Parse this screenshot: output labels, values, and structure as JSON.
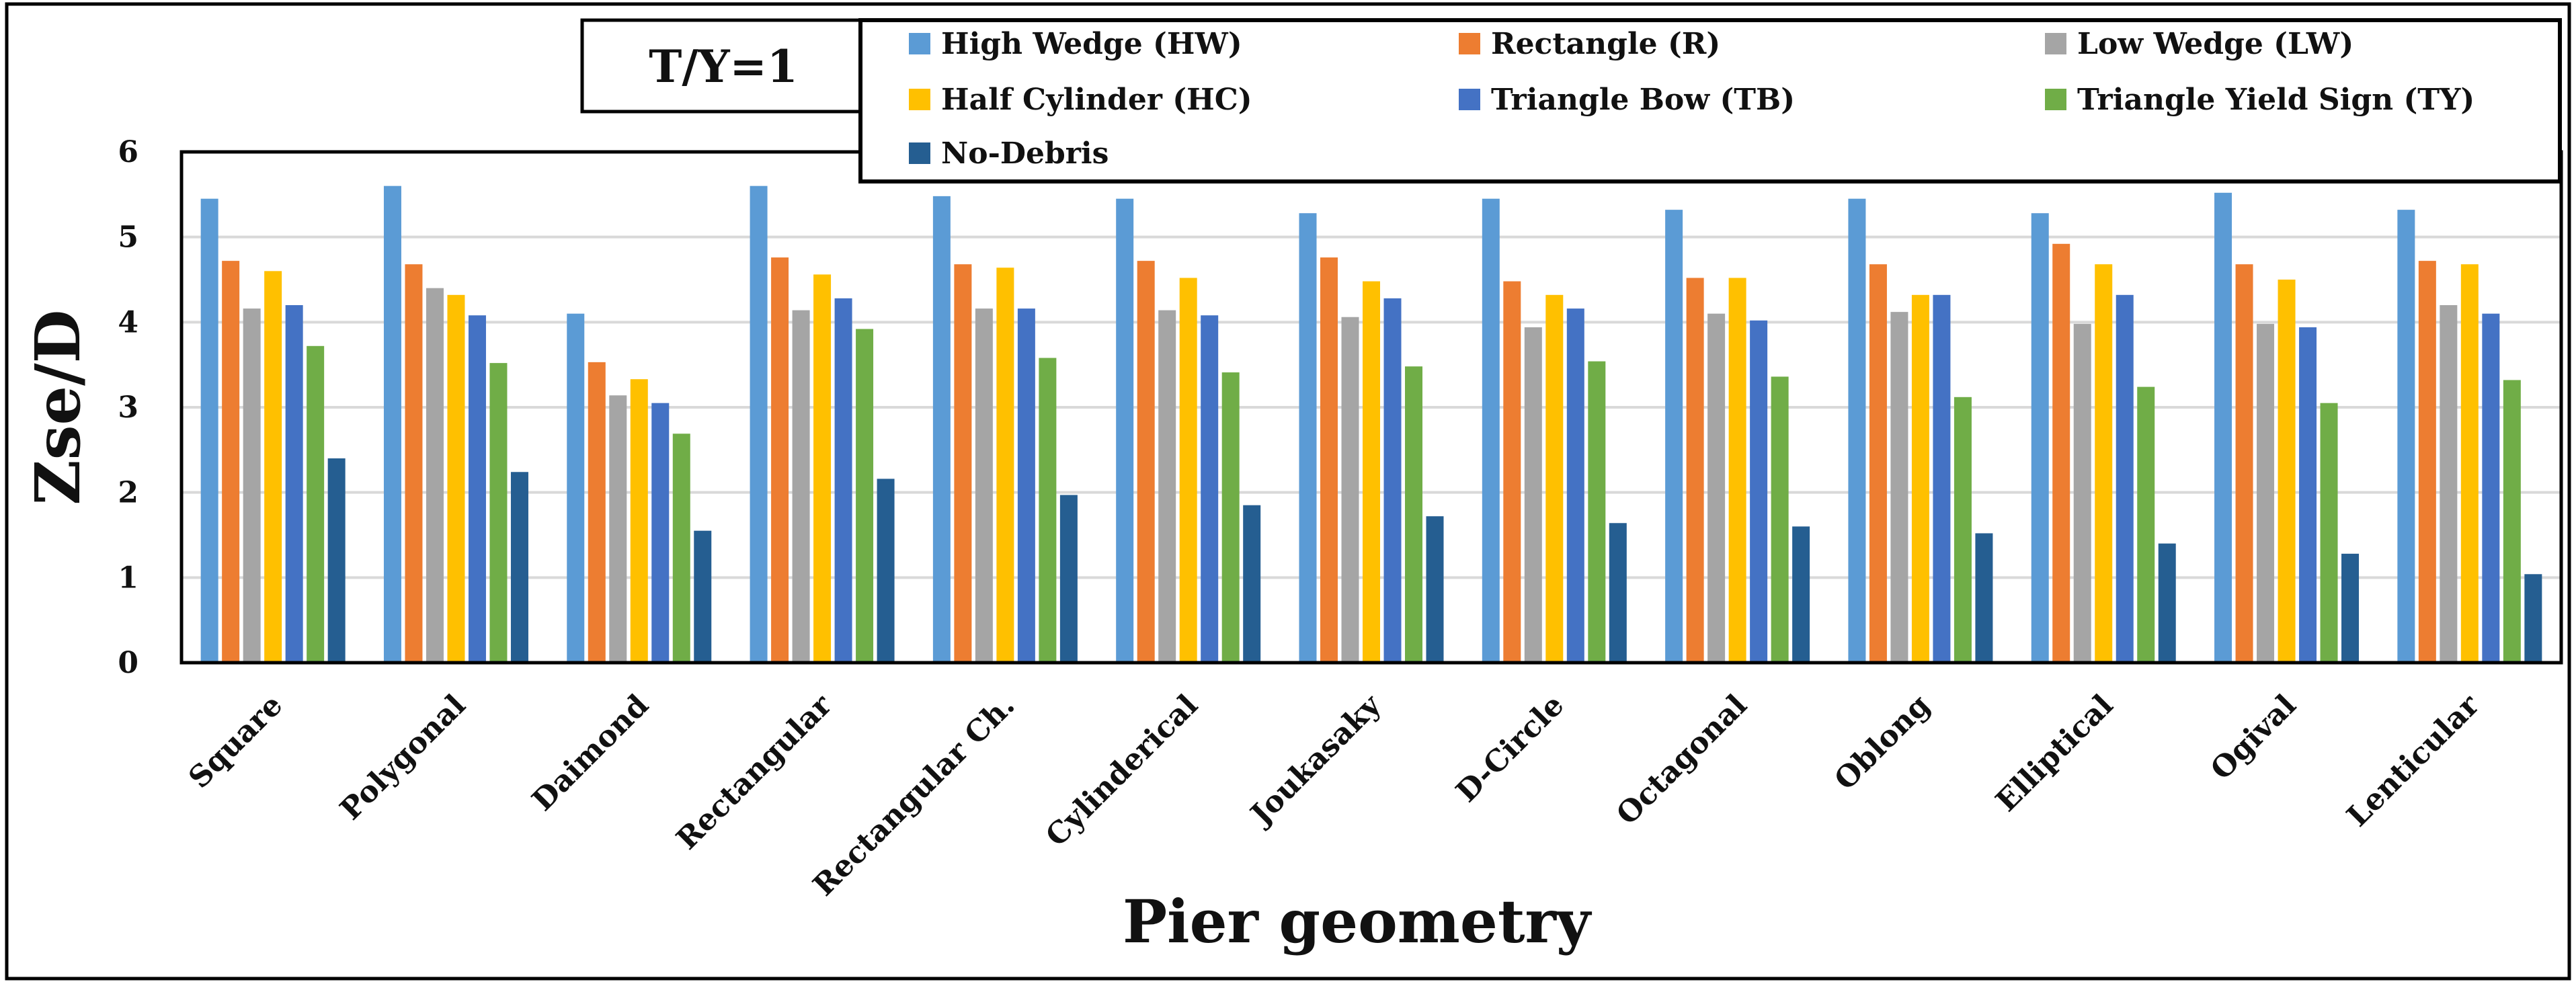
{
  "chart_data": {
    "type": "bar",
    "annotation": "T/Y=1",
    "xlabel": "Pier geometry",
    "ylabel": "Zse/D",
    "ylim": [
      0,
      6
    ],
    "yticks": [
      0,
      1,
      2,
      3,
      4,
      5,
      6
    ],
    "grid": true,
    "legend_position": "top",
    "categories": [
      "Square",
      "Polygonal",
      "Daimond",
      "Rectangular",
      "Rectangular Ch.",
      "Cylinderical",
      "Joukasaky",
      "D-Circle",
      "Octagonal",
      "Oblong",
      "Elliptical",
      "Ogival",
      "Lenticular"
    ],
    "series": [
      {
        "name": "High Wedge (HW)",
        "color": "#5B9BD5",
        "values": [
          5.45,
          5.6,
          4.1,
          5.6,
          5.48,
          5.45,
          5.28,
          5.45,
          5.32,
          5.45,
          5.28,
          5.52,
          5.32
        ]
      },
      {
        "name": "Rectangle (R)",
        "color": "#ED7D31",
        "values": [
          4.72,
          4.68,
          3.53,
          4.76,
          4.68,
          4.72,
          4.76,
          4.48,
          4.52,
          4.68,
          4.92,
          4.68,
          4.72
        ]
      },
      {
        "name": "Low Wedge (LW)",
        "color": "#A5A5A5",
        "values": [
          4.16,
          4.4,
          3.14,
          4.14,
          4.16,
          4.14,
          4.06,
          3.94,
          4.1,
          4.12,
          3.98,
          3.98,
          4.2
        ]
      },
      {
        "name": "Half Cylinder (HC)",
        "color": "#FFC000",
        "values": [
          4.6,
          4.32,
          3.33,
          4.56,
          4.64,
          4.52,
          4.48,
          4.32,
          4.52,
          4.32,
          4.68,
          4.5,
          4.68
        ]
      },
      {
        "name": "Triangle Bow (TB)",
        "color": "#4472C4",
        "values": [
          4.2,
          4.08,
          3.05,
          4.28,
          4.16,
          4.08,
          4.28,
          4.16,
          4.02,
          4.32,
          4.32,
          3.94,
          4.1
        ]
      },
      {
        "name": "Triangle Yield Sign (TY)",
        "color": "#70AD47",
        "values": [
          3.72,
          3.52,
          2.69,
          3.92,
          3.58,
          3.41,
          3.48,
          3.54,
          3.36,
          3.12,
          3.24,
          3.05,
          3.32
        ]
      },
      {
        "name": "No-Debris",
        "color": "#255E91",
        "values": [
          2.4,
          2.24,
          1.55,
          2.16,
          1.97,
          1.85,
          1.72,
          1.64,
          1.6,
          1.52,
          1.4,
          1.28,
          1.04
        ]
      }
    ]
  }
}
